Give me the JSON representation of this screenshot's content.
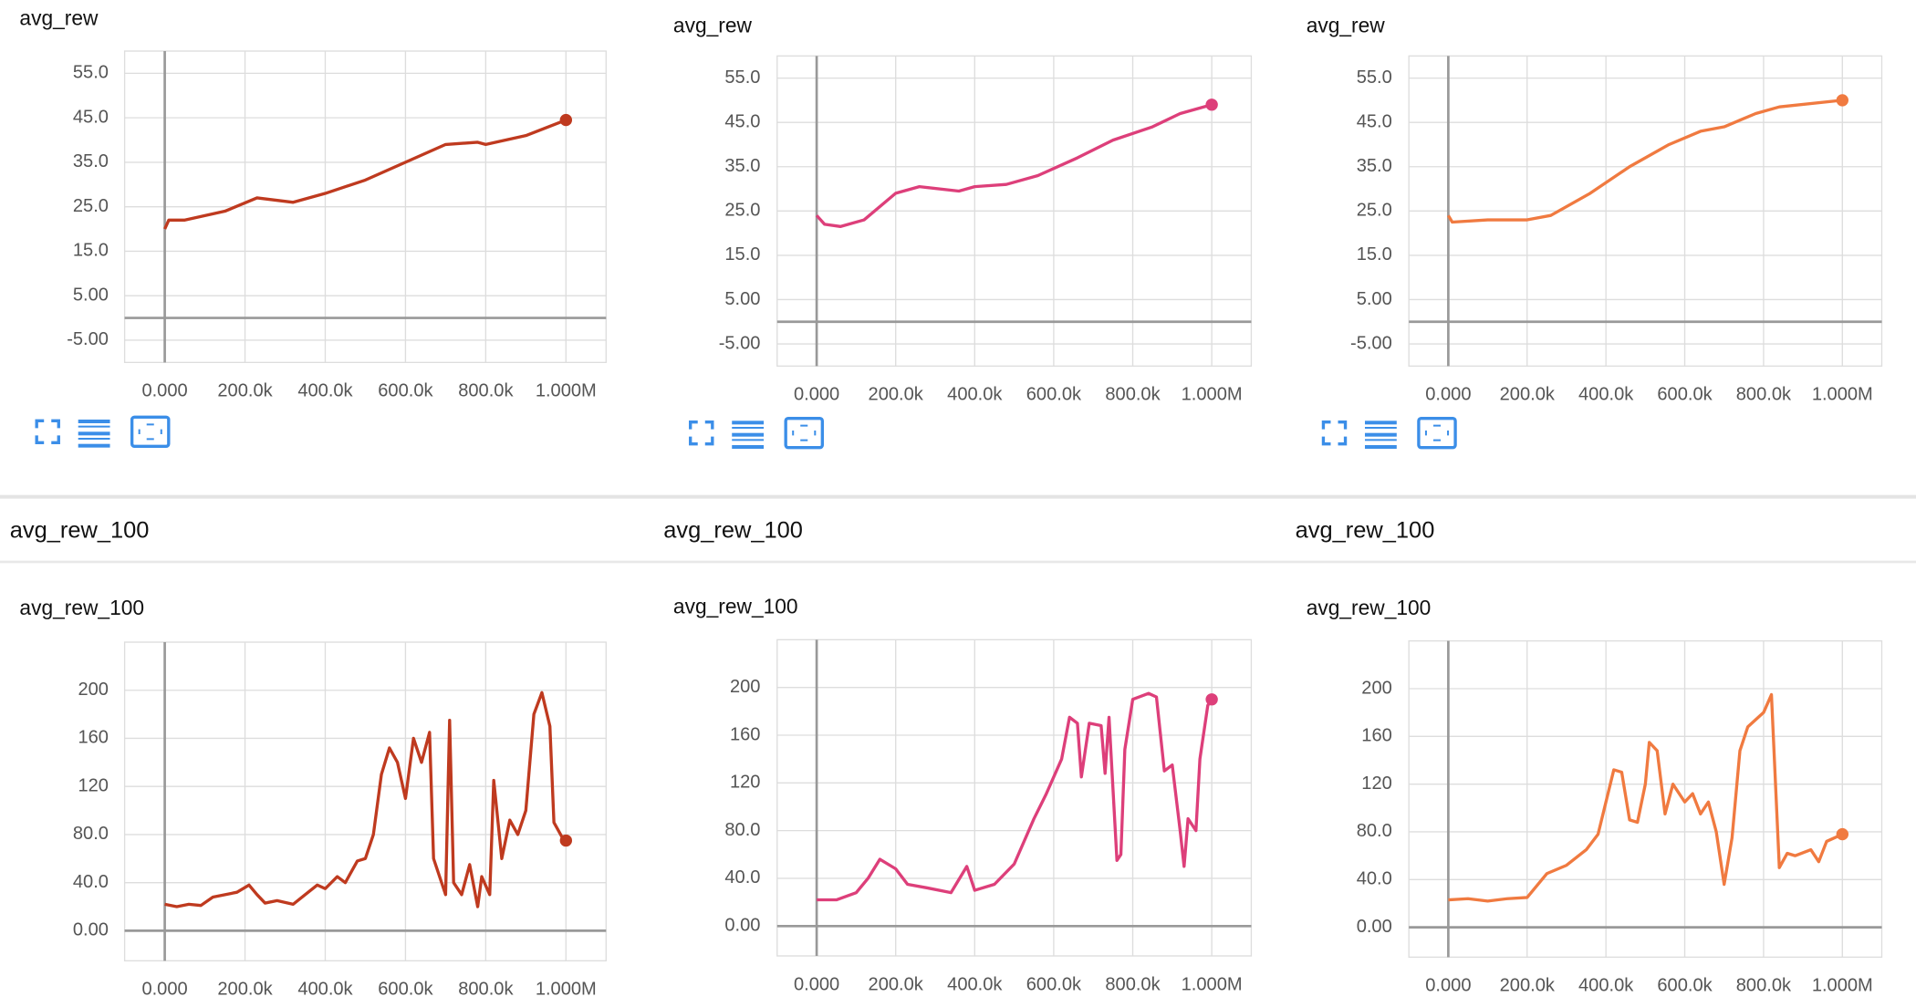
{
  "section_headers": [
    "avg_rew_100",
    "avg_rew_100",
    "avg_rew_100"
  ],
  "chart_data": [
    {
      "type": "line",
      "title": "avg_rew",
      "color": "#bf3a1f",
      "grid": true,
      "x": [
        0,
        10000,
        50000,
        100000,
        150000,
        230000,
        320000,
        400000,
        500000,
        600000,
        700000,
        780000,
        800000,
        900000,
        1000000
      ],
      "values": [
        20,
        22,
        22,
        23,
        24,
        27,
        26,
        28,
        31,
        35,
        39,
        39.5,
        39,
        41,
        44.5
      ],
      "xlim": [
        -100000,
        1100000
      ],
      "xticks": [
        {
          "value": 0,
          "label": "0.000"
        },
        {
          "value": 200000,
          "label": "200.0k"
        },
        {
          "value": 400000,
          "label": "400.0k"
        },
        {
          "value": 600000,
          "label": "600.0k"
        },
        {
          "value": 800000,
          "label": "800.0k"
        },
        {
          "value": 1000000,
          "label": "1.000M"
        }
      ],
      "ylim": [
        -10,
        60
      ],
      "yticks": [
        {
          "value": 55,
          "label": "55.0"
        },
        {
          "value": 45,
          "label": "45.0"
        },
        {
          "value": 35,
          "label": "35.0"
        },
        {
          "value": 25,
          "label": "25.0"
        },
        {
          "value": 15,
          "label": "15.0"
        },
        {
          "value": 5,
          "label": "5.00"
        },
        {
          "value": -5,
          "label": "-5.00"
        }
      ]
    },
    {
      "type": "line",
      "title": "avg_rew",
      "color": "#dd3f7a",
      "grid": true,
      "x": [
        0,
        20000,
        60000,
        120000,
        200000,
        260000,
        360000,
        400000,
        480000,
        560000,
        660000,
        750000,
        850000,
        920000,
        1000000
      ],
      "values": [
        24,
        22,
        21.5,
        23,
        29,
        30.5,
        29.5,
        30.5,
        31,
        33,
        37,
        41,
        44,
        47,
        49
      ],
      "xlim": [
        -100000,
        1100000
      ],
      "xticks": [
        {
          "value": 0,
          "label": "0.000"
        },
        {
          "value": 200000,
          "label": "200.0k"
        },
        {
          "value": 400000,
          "label": "400.0k"
        },
        {
          "value": 600000,
          "label": "600.0k"
        },
        {
          "value": 800000,
          "label": "800.0k"
        },
        {
          "value": 1000000,
          "label": "1.000M"
        }
      ],
      "ylim": [
        -10,
        60
      ],
      "yticks": [
        {
          "value": 55,
          "label": "55.0"
        },
        {
          "value": 45,
          "label": "45.0"
        },
        {
          "value": 35,
          "label": "35.0"
        },
        {
          "value": 25,
          "label": "25.0"
        },
        {
          "value": 15,
          "label": "15.0"
        },
        {
          "value": 5,
          "label": "5.00"
        },
        {
          "value": -5,
          "label": "-5.00"
        }
      ]
    },
    {
      "type": "line",
      "title": "avg_rew",
      "color": "#f07a40",
      "grid": true,
      "x": [
        0,
        10000,
        100000,
        200000,
        260000,
        360000,
        460000,
        560000,
        640000,
        700000,
        780000,
        840000,
        1000000
      ],
      "values": [
        24,
        22.5,
        23,
        23,
        24,
        29,
        35,
        40,
        43,
        44,
        47,
        48.5,
        50
      ],
      "xlim": [
        -100000,
        1100000
      ],
      "xticks": [
        {
          "value": 0,
          "label": "0.000"
        },
        {
          "value": 200000,
          "label": "200.0k"
        },
        {
          "value": 400000,
          "label": "400.0k"
        },
        {
          "value": 600000,
          "label": "600.0k"
        },
        {
          "value": 800000,
          "label": "800.0k"
        },
        {
          "value": 1000000,
          "label": "1.000M"
        }
      ],
      "ylim": [
        -10,
        60
      ],
      "yticks": [
        {
          "value": 55,
          "label": "55.0"
        },
        {
          "value": 45,
          "label": "45.0"
        },
        {
          "value": 35,
          "label": "35.0"
        },
        {
          "value": 25,
          "label": "25.0"
        },
        {
          "value": 15,
          "label": "15.0"
        },
        {
          "value": 5,
          "label": "5.00"
        },
        {
          "value": -5,
          "label": "-5.00"
        }
      ]
    },
    {
      "type": "line",
      "title": "avg_rew_100",
      "color": "#bf3a1f",
      "grid": true,
      "x": [
        0,
        30000,
        60000,
        90000,
        120000,
        150000,
        180000,
        210000,
        230000,
        250000,
        280000,
        320000,
        350000,
        380000,
        400000,
        430000,
        450000,
        480000,
        500000,
        520000,
        540000,
        560000,
        580000,
        600000,
        620000,
        640000,
        660000,
        670000,
        690000,
        700000,
        710000,
        720000,
        740000,
        760000,
        780000,
        790000,
        810000,
        820000,
        840000,
        860000,
        880000,
        900000,
        920000,
        940000,
        960000,
        970000,
        990000,
        1000000
      ],
      "values": [
        22,
        20,
        22,
        21,
        28,
        30,
        32,
        38,
        30,
        23,
        25,
        22,
        30,
        38,
        35,
        45,
        40,
        58,
        60,
        80,
        130,
        152,
        140,
        110,
        160,
        140,
        165,
        60,
        40,
        30,
        175,
        40,
        30,
        55,
        20,
        45,
        30,
        125,
        60,
        92,
        80,
        100,
        180,
        198,
        170,
        90,
        78,
        75
      ],
      "xlim": [
        -100000,
        1100000
      ],
      "xticks": [
        {
          "value": 0,
          "label": "0.000"
        },
        {
          "value": 200000,
          "label": "200.0k"
        },
        {
          "value": 400000,
          "label": "400.0k"
        },
        {
          "value": 600000,
          "label": "600.0k"
        },
        {
          "value": 800000,
          "label": "800.0k"
        },
        {
          "value": 1000000,
          "label": "1.000M"
        }
      ],
      "ylim": [
        -25,
        240
      ],
      "yticks": [
        200,
        160,
        120,
        {
          "value": 80,
          "label": "80.0"
        },
        {
          "value": 40,
          "label": "40.0"
        },
        {
          "value": 0,
          "label": "0.00"
        }
      ]
    },
    {
      "type": "line",
      "title": "avg_rew_100",
      "color": "#dd3f7a",
      "grid": true,
      "x": [
        0,
        50000,
        100000,
        130000,
        160000,
        200000,
        230000,
        280000,
        340000,
        380000,
        400000,
        450000,
        500000,
        550000,
        580000,
        620000,
        640000,
        660000,
        670000,
        690000,
        720000,
        730000,
        740000,
        760000,
        770000,
        780000,
        800000,
        840000,
        860000,
        880000,
        900000,
        920000,
        930000,
        940000,
        960000,
        970000,
        990000,
        1000000
      ],
      "values": [
        22,
        22,
        28,
        40,
        56,
        48,
        35,
        32,
        28,
        50,
        30,
        35,
        52,
        90,
        110,
        140,
        175,
        170,
        125,
        170,
        168,
        128,
        175,
        55,
        60,
        148,
        190,
        195,
        192,
        130,
        135,
        80,
        50,
        90,
        80,
        140,
        185,
        190
      ],
      "xlim": [
        -100000,
        1100000
      ],
      "xticks": [
        {
          "value": 0,
          "label": "0.000"
        },
        {
          "value": 200000,
          "label": "200.0k"
        },
        {
          "value": 400000,
          "label": "400.0k"
        },
        {
          "value": 600000,
          "label": "600.0k"
        },
        {
          "value": 800000,
          "label": "800.0k"
        },
        {
          "value": 1000000,
          "label": "1.000M"
        }
      ],
      "ylim": [
        -25,
        240
      ],
      "yticks": [
        200,
        160,
        120,
        {
          "value": 80,
          "label": "80.0"
        },
        {
          "value": 40,
          "label": "40.0"
        },
        {
          "value": 0,
          "label": "0.00"
        }
      ]
    },
    {
      "type": "line",
      "title": "avg_rew_100",
      "color": "#f07a40",
      "grid": true,
      "x": [
        0,
        50000,
        100000,
        150000,
        200000,
        250000,
        300000,
        350000,
        380000,
        400000,
        420000,
        440000,
        460000,
        480000,
        500000,
        510000,
        530000,
        550000,
        570000,
        600000,
        620000,
        640000,
        660000,
        680000,
        700000,
        720000,
        740000,
        760000,
        800000,
        820000,
        840000,
        860000,
        880000,
        920000,
        940000,
        960000,
        1000000
      ],
      "values": [
        23,
        24,
        22,
        24,
        25,
        45,
        52,
        65,
        78,
        105,
        132,
        130,
        90,
        88,
        120,
        155,
        148,
        95,
        120,
        105,
        112,
        95,
        105,
        80,
        36,
        75,
        148,
        168,
        180,
        195,
        50,
        62,
        60,
        65,
        55,
        72,
        78
      ],
      "xlim": [
        -100000,
        1100000
      ],
      "xticks": [
        {
          "value": 0,
          "label": "0.000"
        },
        {
          "value": 200000,
          "label": "200.0k"
        },
        {
          "value": 400000,
          "label": "400.0k"
        },
        {
          "value": 600000,
          "label": "600.0k"
        },
        {
          "value": 800000,
          "label": "800.0k"
        },
        {
          "value": 1000000,
          "label": "1.000M"
        }
      ],
      "ylim": [
        -25,
        240
      ],
      "yticks": [
        200,
        160,
        120,
        {
          "value": 80,
          "label": "80.0"
        },
        {
          "value": 40,
          "label": "40.0"
        },
        {
          "value": 0,
          "label": "0.00"
        }
      ]
    }
  ]
}
